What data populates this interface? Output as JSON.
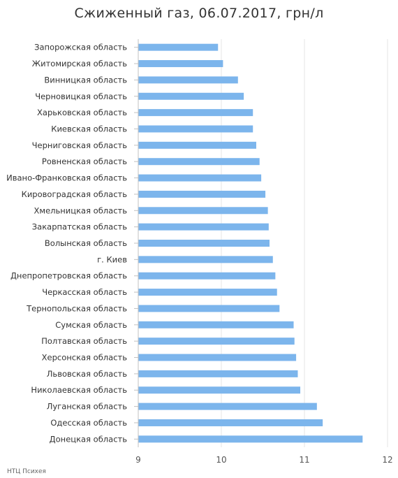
{
  "header": {
    "title": "Сжиженный газ, 06.07.2017, грн/л"
  },
  "footer": {
    "credit": "НТЦ Психея"
  },
  "colors": {
    "bar": "#7cb5ec",
    "axis_line": "#c0c0c0",
    "grid": "#e6e6e6",
    "text": "#333333"
  },
  "chart_data": {
    "type": "bar",
    "orientation": "horizontal",
    "title": "Сжиженный газ, 06.07.2017, грн/л",
    "xlabel": "",
    "ylabel": "",
    "xlim": [
      9,
      12
    ],
    "x_ticks": [
      9,
      10,
      11,
      12
    ],
    "grid": true,
    "legend": "none",
    "categories": [
      "Запорожская область",
      "Житомирская область",
      "Винницкая область",
      "Черновицкая область",
      "Харьковская область",
      "Киевская область",
      "Черниговская область",
      "Ровненская область",
      "Ивано-Франковская область",
      "Кировоградская область",
      "Хмельницкая область",
      "Закарпатская область",
      "Волынская область",
      "г. Киев",
      "Днепропетровская область",
      "Черкасская область",
      "Тернопольская область",
      "Сумская область",
      "Полтавская область",
      "Херсонская область",
      "Львовская область",
      "Николаевская область",
      "Луганская область",
      "Одесская область",
      "Донецкая область"
    ],
    "values": [
      9.96,
      10.02,
      10.2,
      10.27,
      10.38,
      10.38,
      10.42,
      10.46,
      10.48,
      10.53,
      10.56,
      10.57,
      10.58,
      10.62,
      10.65,
      10.67,
      10.7,
      10.87,
      10.88,
      10.9,
      10.92,
      10.95,
      11.15,
      11.22,
      11.7
    ]
  }
}
